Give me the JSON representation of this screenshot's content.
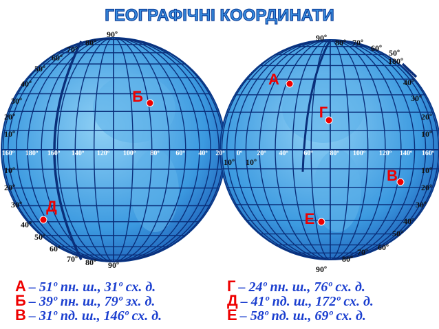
{
  "title": "ГЕОГРАФІЧНІ КООРДИНАТИ",
  "left_labels": [
    "90º",
    "80º",
    "70º",
    "60º",
    "50º",
    "40º",
    "30º",
    "20º",
    "10º",
    "160º",
    "180º",
    "160º",
    "140º",
    "120º",
    "100º",
    "80º",
    "60º",
    "40º",
    "20º",
    "10º",
    "20º",
    "30º",
    "40º",
    "50º",
    "60º",
    "70º",
    "80º",
    "90º"
  ],
  "right_labels": [
    "90º",
    "80º",
    "70º",
    "60º",
    "50º",
    "180º",
    "40º",
    "30º",
    "20º",
    "10º",
    "0º",
    "20º",
    "40º",
    "60º",
    "80º",
    "100º",
    "120º",
    "140º",
    "160º",
    "10º",
    "10º",
    "10º",
    "20º",
    "30º",
    "40º",
    "50º",
    "60º",
    "70º",
    "80º",
    "90º"
  ],
  "points": [
    "А",
    "Б",
    "Г",
    "В",
    "Д",
    "Е"
  ],
  "legend": [
    {
      "letter": "А",
      "text": "– 51º пн. ш., 31º сх. д."
    },
    {
      "letter": "Б",
      "text": "– 39º пн. ш., 79º зх. д."
    },
    {
      "letter": "В",
      "text": "– 31º пд. ш., 146º сх. д."
    },
    {
      "letter": "Г",
      "text": "– 24º пн. ш., 76º сх. д."
    },
    {
      "letter": "Д",
      "text": "– 41º пд. ш., 172º сх. д."
    },
    {
      "letter": "Е",
      "text": "–  58º пд. ш., 69º сх. д."
    }
  ]
}
